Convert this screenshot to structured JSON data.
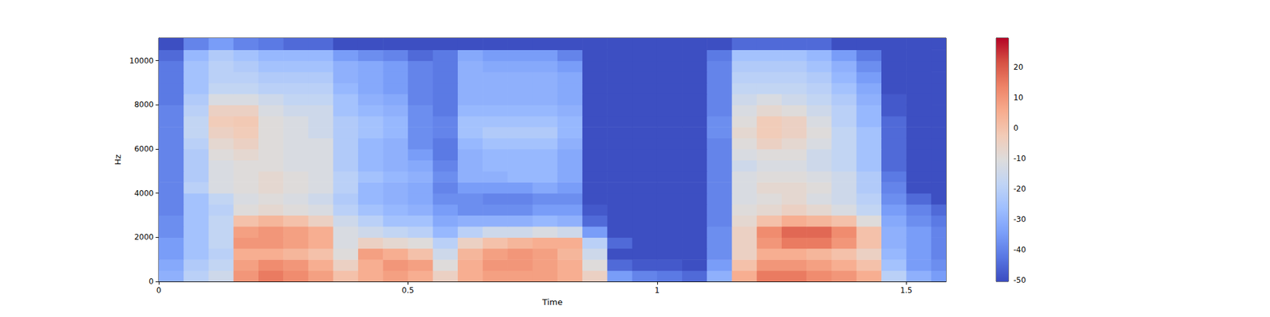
{
  "chart_data": {
    "type": "heatmap",
    "x_label": "Time",
    "y_label": "Hz",
    "xlim": [
      0,
      1.58
    ],
    "xticks": [
      0,
      0.5,
      1,
      1.5
    ],
    "ylim": [
      0,
      11025
    ],
    "yticks": [
      0,
      2000,
      4000,
      6000,
      8000,
      10000
    ],
    "x_bins": [
      0,
      0.05,
      0.1,
      0.15,
      0.2,
      0.25,
      0.3,
      0.35,
      0.4,
      0.45,
      0.5,
      0.55,
      0.6,
      0.65,
      0.7,
      0.75,
      0.8,
      0.85,
      0.9,
      0.95,
      1.0,
      1.05,
      1.1,
      1.15,
      1.2,
      1.25,
      1.3,
      1.35,
      1.4,
      1.45,
      1.5,
      1.55,
      1.58
    ],
    "y_bins": [
      0,
      500,
      1000,
      1500,
      2000,
      2500,
      3000,
      3500,
      4000,
      4500,
      5000,
      5500,
      6000,
      6500,
      7000,
      7500,
      8000,
      8500,
      9000,
      9500,
      10000,
      10500,
      11025
    ],
    "cells": [
      [
        -30,
        -20,
        -15,
        10,
        15,
        12,
        8,
        0,
        5,
        8,
        5,
        -5,
        5,
        8,
        8,
        8,
        5,
        -5,
        -35,
        -40,
        -42,
        -45,
        -30,
        5,
        15,
        15,
        12,
        10,
        5,
        -20,
        -30,
        -35
      ],
      [
        -32,
        -22,
        -18,
        8,
        12,
        10,
        5,
        -5,
        5,
        10,
        8,
        -10,
        5,
        10,
        10,
        8,
        5,
        -10,
        -45,
        -48,
        -48,
        -50,
        -35,
        0,
        10,
        10,
        8,
        5,
        0,
        -25,
        -35,
        -38
      ],
      [
        -35,
        -25,
        -20,
        5,
        5,
        3,
        0,
        -10,
        8,
        5,
        0,
        -15,
        3,
        8,
        10,
        8,
        3,
        -15,
        -50,
        -50,
        -50,
        -50,
        -38,
        -5,
        5,
        5,
        3,
        0,
        -5,
        -28,
        -35,
        -40
      ],
      [
        -35,
        -25,
        -18,
        10,
        10,
        8,
        5,
        -12,
        -5,
        -8,
        -10,
        -20,
        -5,
        0,
        3,
        5,
        5,
        -20,
        -45,
        -50,
        -50,
        -50,
        -38,
        -5,
        10,
        15,
        15,
        10,
        0,
        -30,
        -35,
        -40
      ],
      [
        -38,
        -25,
        -18,
        8,
        10,
        8,
        5,
        -12,
        -15,
        -18,
        -20,
        -28,
        -20,
        -15,
        -15,
        -12,
        -15,
        -35,
        -50,
        -50,
        -50,
        -50,
        -38,
        -5,
        12,
        18,
        18,
        12,
        0,
        -30,
        -35,
        -40
      ],
      [
        -38,
        -25,
        -18,
        0,
        3,
        0,
        -5,
        -15,
        -20,
        -25,
        -25,
        -32,
        -30,
        -30,
        -30,
        -28,
        -30,
        -45,
        -50,
        -50,
        -50,
        -50,
        -40,
        -8,
        0,
        5,
        3,
        0,
        -10,
        -32,
        -38,
        -42
      ],
      [
        -40,
        -25,
        -20,
        -10,
        -8,
        -10,
        -12,
        -20,
        -25,
        -28,
        -30,
        -35,
        -38,
        -38,
        -38,
        -35,
        -35,
        -48,
        -50,
        -50,
        -50,
        -50,
        -40,
        -10,
        -8,
        -5,
        -8,
        -12,
        -18,
        -35,
        -40,
        -45
      ],
      [
        -40,
        -25,
        -18,
        -12,
        -10,
        -12,
        -15,
        -22,
        -28,
        -30,
        -32,
        -38,
        -38,
        -40,
        -40,
        -38,
        -38,
        -50,
        -50,
        -50,
        -50,
        -50,
        -40,
        -12,
        -10,
        -8,
        -12,
        -15,
        -20,
        -38,
        -45,
        -50
      ],
      [
        -40,
        -20,
        -12,
        -10,
        -8,
        -10,
        -12,
        -20,
        -28,
        -30,
        -32,
        -40,
        -35,
        -35,
        -35,
        -32,
        -35,
        -50,
        -50,
        -50,
        -50,
        -50,
        -40,
        -12,
        -8,
        -8,
        -10,
        -15,
        -22,
        -40,
        -50,
        -50
      ],
      [
        -40,
        -22,
        -12,
        -10,
        -8,
        -10,
        -12,
        -20,
        -25,
        -28,
        -30,
        -38,
        -30,
        -30,
        -28,
        -28,
        -32,
        -50,
        -50,
        -50,
        -50,
        -50,
        -40,
        -12,
        -10,
        -10,
        -12,
        -15,
        -22,
        -42,
        -50,
        -50
      ],
      [
        -40,
        -22,
        -12,
        -10,
        -10,
        -12,
        -12,
        -22,
        -28,
        -30,
        -32,
        -40,
        -30,
        -28,
        -28,
        -28,
        -32,
        -50,
        -50,
        -50,
        -50,
        -50,
        -40,
        -15,
        -12,
        -12,
        -15,
        -18,
        -25,
        -45,
        -50,
        -50
      ],
      [
        -40,
        -22,
        -10,
        -8,
        -10,
        -12,
        -12,
        -22,
        -28,
        -30,
        -35,
        -42,
        -30,
        -28,
        -28,
        -28,
        -32,
        -50,
        -50,
        -50,
        -50,
        -50,
        -40,
        -12,
        -10,
        -10,
        -15,
        -18,
        -25,
        -45,
        -50,
        -50
      ],
      [
        -40,
        -20,
        -8,
        -5,
        -10,
        -12,
        -12,
        -22,
        -28,
        -30,
        -38,
        -42,
        -28,
        -25,
        -25,
        -25,
        -30,
        -50,
        -50,
        -50,
        -50,
        -50,
        -40,
        -10,
        -5,
        -8,
        -12,
        -18,
        -25,
        -45,
        -50,
        -50
      ],
      [
        -40,
        -18,
        -5,
        -3,
        -10,
        -12,
        -15,
        -22,
        -25,
        -28,
        -38,
        -40,
        -25,
        -22,
        -22,
        -22,
        -28,
        -50,
        -50,
        -50,
        -50,
        -50,
        -38,
        -8,
        -3,
        -5,
        -10,
        -18,
        -25,
        -45,
        -50,
        -50
      ],
      [
        -40,
        -18,
        -3,
        -2,
        -10,
        -12,
        -15,
        -22,
        -25,
        -28,
        -38,
        -40,
        -25,
        -25,
        -25,
        -25,
        -28,
        -50,
        -50,
        -50,
        -50,
        -50,
        -38,
        -10,
        -3,
        -5,
        -12,
        -20,
        -28,
        -45,
        -50,
        -50
      ],
      [
        -40,
        -20,
        -5,
        -5,
        -12,
        -15,
        -15,
        -25,
        -28,
        -30,
        -38,
        -42,
        -28,
        -28,
        -28,
        -28,
        -30,
        -50,
        -50,
        -50,
        -50,
        -50,
        -40,
        -12,
        -8,
        -10,
        -15,
        -20,
        -28,
        -48,
        -50,
        -50
      ],
      [
        -42,
        -22,
        -12,
        -12,
        -15,
        -18,
        -18,
        -25,
        -30,
        -32,
        -40,
        -42,
        -30,
        -30,
        -30,
        -30,
        -32,
        -50,
        -50,
        -50,
        -50,
        -50,
        -40,
        -15,
        -12,
        -15,
        -18,
        -22,
        -30,
        -48,
        -50,
        -50
      ],
      [
        -42,
        -25,
        -18,
        -18,
        -20,
        -20,
        -20,
        -28,
        -32,
        -35,
        -40,
        -42,
        -30,
        -30,
        -30,
        -30,
        -32,
        -50,
        -50,
        -50,
        -50,
        -50,
        -40,
        -18,
        -18,
        -18,
        -20,
        -25,
        -32,
        -50,
        -50,
        -50
      ],
      [
        -42,
        -25,
        -20,
        -20,
        -22,
        -22,
        -22,
        -30,
        -32,
        -35,
        -40,
        -42,
        -30,
        -30,
        -30,
        -30,
        -32,
        -50,
        -50,
        -50,
        -50,
        -50,
        -40,
        -20,
        -20,
        -20,
        -22,
        -28,
        -35,
        -50,
        -50,
        -50
      ],
      [
        -42,
        -25,
        -20,
        -22,
        -25,
        -25,
        -25,
        -30,
        -32,
        -35,
        -40,
        -42,
        -30,
        -32,
        -32,
        -32,
        -35,
        -50,
        -50,
        -50,
        -50,
        -50,
        -40,
        -22,
        -22,
        -22,
        -25,
        -30,
        -38,
        -50,
        -50,
        -50
      ],
      [
        -45,
        -28,
        -22,
        -25,
        -28,
        -28,
        -28,
        -35,
        -38,
        -40,
        -45,
        -42,
        -32,
        -35,
        -35,
        -35,
        -40,
        -50,
        -50,
        -50,
        -50,
        -50,
        -42,
        -25,
        -25,
        -25,
        -28,
        -35,
        -42,
        -50,
        -50,
        -50
      ],
      [
        -50,
        -40,
        -35,
        -40,
        -42,
        -45,
        -45,
        -50,
        -50,
        -50,
        -50,
        -50,
        -50,
        -50,
        -50,
        -50,
        -50,
        -50,
        -50,
        -50,
        -50,
        -50,
        -50,
        -45,
        -45,
        -45,
        -45,
        -50,
        -50,
        -50,
        -50,
        -50
      ]
    ],
    "colorbar_range": [
      -50.5,
      29.5
    ],
    "colorbar_ticks": [
      -50,
      -40,
      -30,
      -20,
      -10,
      0,
      10,
      20
    ]
  }
}
